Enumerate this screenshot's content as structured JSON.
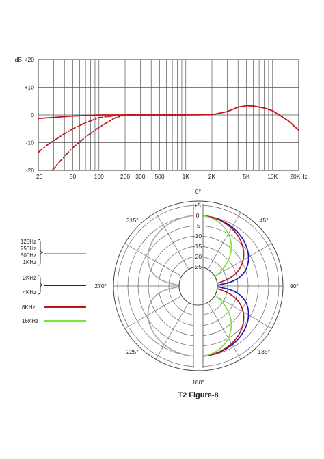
{
  "chart_data": [
    {
      "type": "line",
      "title": "",
      "y_unit": "dB",
      "xscale": "log",
      "xlim": [
        20,
        20000
      ],
      "ylim": [
        -20,
        20
      ],
      "grid": true,
      "x_tick_values": [
        20,
        50,
        100,
        200,
        300,
        500,
        1000,
        2000,
        5000,
        10000,
        20000
      ],
      "x_tick_labels": [
        "20",
        "50",
        "100",
        "200",
        "300",
        "500",
        "1K",
        "2K",
        "5K",
        "10K",
        "20KHz"
      ],
      "y_tick_values": [
        20,
        10,
        0,
        -10,
        -20
      ],
      "y_tick_labels": [
        "+20",
        "+10",
        "0",
        "-10",
        "-20"
      ],
      "series": [
        {
          "style": "solid",
          "color": "#c0141b",
          "x": [
            20,
            30,
            50,
            70,
            100,
            150,
            200,
            300,
            500,
            1000,
            2000,
            3000,
            4000,
            5000,
            6000,
            8000,
            10000,
            15000,
            20000
          ],
          "y": [
            -1.3,
            -0.9,
            -0.4,
            -0.2,
            0,
            0,
            0,
            0,
            0,
            0,
            0.1,
            1.2,
            2.8,
            3.3,
            3.2,
            2.5,
            1.5,
            -2,
            -5.5
          ]
        },
        {
          "style": "dashed",
          "color": "#c0141b",
          "x": [
            20,
            25,
            30,
            40,
            50,
            70,
            100,
            150,
            200,
            300,
            500,
            1000
          ],
          "y": [
            -13.5,
            -11,
            -9.3,
            -6.8,
            -5,
            -2.8,
            -1,
            -0.3,
            0,
            0,
            0,
            0
          ]
        },
        {
          "style": "dashed",
          "color": "#c0141b",
          "x": [
            29,
            35,
            40,
            50,
            70,
            100,
            150,
            200,
            300,
            500,
            1000
          ],
          "y": [
            -20,
            -17,
            -15,
            -11.8,
            -8,
            -4.5,
            -1.2,
            0,
            0,
            0,
            0
          ]
        }
      ]
    },
    {
      "type": "polar",
      "title": "T2 Figure-8",
      "r_tick_labels": [
        "+5",
        "0",
        "-5",
        "-10",
        "-15",
        "-20",
        "-25"
      ],
      "r_tick_values": [
        5,
        0,
        -5,
        -10,
        -15,
        -20,
        -25
      ],
      "angle_labels": [
        "0°",
        "45°",
        "90°",
        "135°",
        "180°",
        "225°",
        "270°",
        "315°"
      ],
      "legend": [
        {
          "labels": [
            "125Hz",
            "250Hz",
            "500Hz",
            "1KHz"
          ],
          "color": "#a8a8a8"
        },
        {
          "labels": [
            "2KHz",
            "4KHz"
          ],
          "color": "#1717b5"
        },
        {
          "labels": [
            "8KHz"
          ],
          "color": "#c0141b"
        },
        {
          "labels": [
            "16KHz"
          ],
          "color": "#7be33a"
        }
      ],
      "series": [
        {
          "color": "#a8a8a8",
          "side": "left",
          "pattern": "figure-8",
          "front_db": 0
        },
        {
          "color": "#1717b5",
          "side": "right",
          "pattern": "figure-8",
          "front_db": 0
        },
        {
          "color": "#c0141b",
          "side": "right",
          "pattern": "figure-8-narrow",
          "front_db": 0
        },
        {
          "color": "#7be33a",
          "side": "right",
          "pattern": "figure-8-narrowest",
          "front_db": 0
        }
      ]
    }
  ]
}
